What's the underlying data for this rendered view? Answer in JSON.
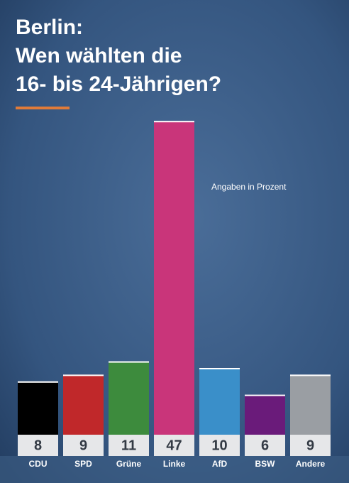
{
  "chart_data": {
    "type": "bar",
    "title": [
      "Berlin:",
      "Wen wählten die",
      "16- bis 24-Jährigen?"
    ],
    "annotation": "Angaben in Prozent",
    "categories": [
      "CDU",
      "SPD",
      "Grüne",
      "Linke",
      "AfD",
      "BSW",
      "Andere"
    ],
    "values": [
      8,
      9,
      11,
      47,
      10,
      6,
      9
    ],
    "colors": [
      "#000000",
      "#c0282a",
      "#3d8b3d",
      "#c9357a",
      "#3a8fc9",
      "#6a1b7a",
      "#9a9ea3"
    ]
  }
}
